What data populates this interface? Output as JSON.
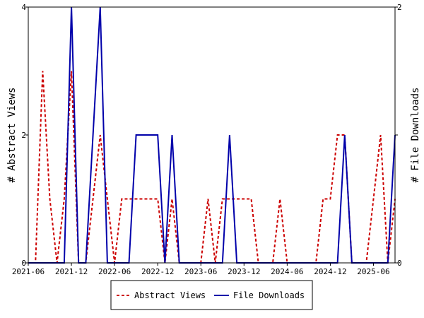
{
  "chart_data": {
    "type": "line",
    "x_tick_labels": [
      "2021-06",
      "2021-12",
      "2022-06",
      "2022-12",
      "2023-06",
      "2023-12",
      "2024-06",
      "2024-12",
      "2025-06"
    ],
    "x_range": [
      "2021-06",
      "2025-09"
    ],
    "y_left": {
      "label": "# Abstract Views",
      "range": [
        0,
        4
      ],
      "ticks": [
        0,
        2,
        4
      ]
    },
    "y_right": {
      "label": "# File Downloads",
      "range": [
        0,
        2
      ],
      "ticks": [
        0,
        1,
        2
      ]
    },
    "grid": false,
    "legend_position": "bottom",
    "series": [
      {
        "name": "Abstract Views",
        "axis": "left",
        "color": "#cc0000",
        "dash": "dashed",
        "points": [
          [
            "2021-06",
            0
          ],
          [
            "2021-07",
            0
          ],
          [
            "2021-08",
            3
          ],
          [
            "2021-09",
            1
          ],
          [
            "2021-10",
            0
          ],
          [
            "2021-11",
            1
          ],
          [
            "2021-12",
            3
          ],
          [
            "2022-01",
            0
          ],
          [
            "2022-02",
            0
          ],
          [
            "2022-03",
            1
          ],
          [
            "2022-04",
            2
          ],
          [
            "2022-05",
            1
          ],
          [
            "2022-06",
            0
          ],
          [
            "2022-07",
            1
          ],
          [
            "2022-08",
            1
          ],
          [
            "2022-09",
            1
          ],
          [
            "2022-10",
            1
          ],
          [
            "2022-11",
            1
          ],
          [
            "2022-12",
            1
          ],
          [
            "2023-01",
            0
          ],
          [
            "2023-02",
            1
          ],
          [
            "2023-03",
            0
          ],
          [
            "2023-04",
            0
          ],
          [
            "2023-05",
            0
          ],
          [
            "2023-06",
            0
          ],
          [
            "2023-07",
            1
          ],
          [
            "2023-08",
            0
          ],
          [
            "2023-09",
            1
          ],
          [
            "2023-10",
            1
          ],
          [
            "2023-11",
            1
          ],
          [
            "2023-12",
            1
          ],
          [
            "2024-01",
            1
          ],
          [
            "2024-02",
            0
          ],
          [
            "2024-03",
            0
          ],
          [
            "2024-04",
            0
          ],
          [
            "2024-05",
            1
          ],
          [
            "2024-06",
            0
          ],
          [
            "2024-07",
            0
          ],
          [
            "2024-08",
            0
          ],
          [
            "2024-09",
            0
          ],
          [
            "2024-10",
            0
          ],
          [
            "2024-11",
            1
          ],
          [
            "2024-12",
            1
          ],
          [
            "2025-01",
            2
          ],
          [
            "2025-02",
            2
          ],
          [
            "2025-03",
            0
          ],
          [
            "2025-04",
            0
          ],
          [
            "2025-05",
            0
          ],
          [
            "2025-06",
            1
          ],
          [
            "2025-07",
            2
          ],
          [
            "2025-08",
            0
          ],
          [
            "2025-09",
            1
          ]
        ]
      },
      {
        "name": "File Downloads",
        "axis": "right",
        "color": "#0000aa",
        "dash": "solid",
        "points": [
          [
            "2021-06",
            0
          ],
          [
            "2021-07",
            0
          ],
          [
            "2021-08",
            0
          ],
          [
            "2021-09",
            0
          ],
          [
            "2021-10",
            0
          ],
          [
            "2021-11",
            0
          ],
          [
            "2021-12",
            2
          ],
          [
            "2022-01",
            0
          ],
          [
            "2022-02",
            0
          ],
          [
            "2022-03",
            1
          ],
          [
            "2022-04",
            2
          ],
          [
            "2022-05",
            0
          ],
          [
            "2022-06",
            0
          ],
          [
            "2022-07",
            0
          ],
          [
            "2022-08",
            0
          ],
          [
            "2022-09",
            1
          ],
          [
            "2022-10",
            1
          ],
          [
            "2022-11",
            1
          ],
          [
            "2022-12",
            1
          ],
          [
            "2023-01",
            0
          ],
          [
            "2023-02",
            1
          ],
          [
            "2023-03",
            0
          ],
          [
            "2023-04",
            0
          ],
          [
            "2023-05",
            0
          ],
          [
            "2023-06",
            0
          ],
          [
            "2023-07",
            0
          ],
          [
            "2023-08",
            0
          ],
          [
            "2023-09",
            0
          ],
          [
            "2023-10",
            1
          ],
          [
            "2023-11",
            0
          ],
          [
            "2023-12",
            0
          ],
          [
            "2024-01",
            0
          ],
          [
            "2024-02",
            0
          ],
          [
            "2024-03",
            0
          ],
          [
            "2024-04",
            0
          ],
          [
            "2024-05",
            0
          ],
          [
            "2024-06",
            0
          ],
          [
            "2024-07",
            0
          ],
          [
            "2024-08",
            0
          ],
          [
            "2024-09",
            0
          ],
          [
            "2024-10",
            0
          ],
          [
            "2024-11",
            0
          ],
          [
            "2024-12",
            0
          ],
          [
            "2025-01",
            0
          ],
          [
            "2025-02",
            1
          ],
          [
            "2025-03",
            0
          ],
          [
            "2025-04",
            0
          ],
          [
            "2025-05",
            0
          ],
          [
            "2025-06",
            0
          ],
          [
            "2025-07",
            0
          ],
          [
            "2025-08",
            0
          ],
          [
            "2025-09",
            1
          ]
        ]
      }
    ]
  }
}
